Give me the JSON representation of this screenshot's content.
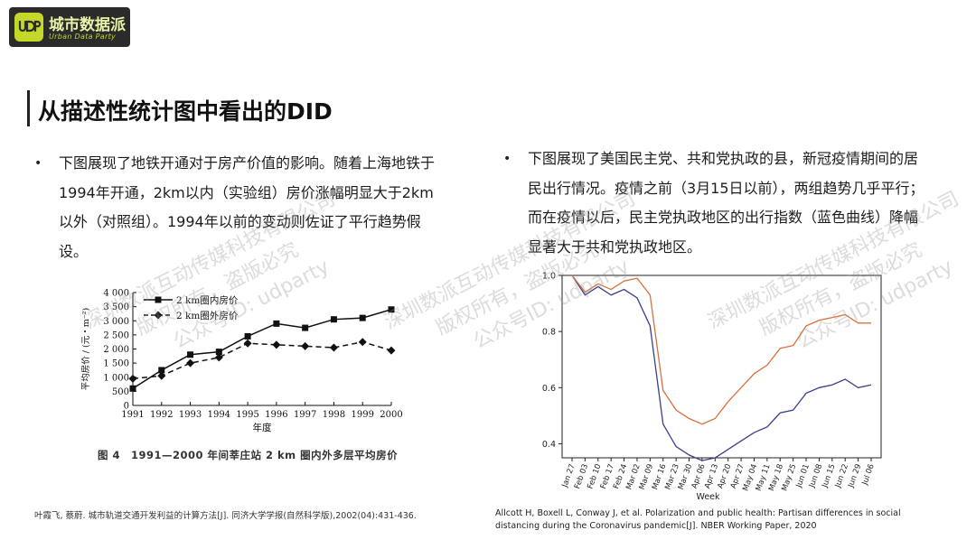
{
  "logo": {
    "title": "城市数据派",
    "subtitle": "Urban Data Party",
    "badge_icon": "udp-badge-icon",
    "badge_color": "#c3d829"
  },
  "title": "从描述性统计图中看出的DID",
  "left": {
    "bullet": "•",
    "text": "下图展现了地铁开通对于房产价值的影响。随着上海地铁于1994年开通，2km以内（实验组）房价涨幅明显大于2km以外（对照组）。1994年以前的变动则佐证了平行趋势假设。",
    "chart_caption": "图 4　1991—2000 年间莘庄站 2 km 圈内外多层平均房价",
    "reference": "叶霞飞, 蔡蔚. 城市轨道交通开发利益的计算方法[J]. 同济大学学报(自然科学版),2002(04):431-436."
  },
  "right": {
    "bullet": "•",
    "text": "下图展现了美国民主党、共和党执政的县，新冠疫情期间的居民出行情况。疫情之前（3月15日以前），两组趋势几乎平行；而在疫情以后，民主党执政地区的出行指数（蓝色曲线）降幅显著大于共和党执政地区。",
    "reference": "Allcott H, Boxell L, Conway J, et al. Polarization and public health: Partisan differences in social distancing during the Coronavirus pandemic[J]. NBER Working Paper, 2020"
  },
  "watermarks": [
    {
      "line1": "深圳数派互动传媒科技有限公司",
      "line2": "版权所有，盗版必究",
      "line3": "公众号ID: udparty"
    },
    {
      "line1": "深圳数派互动传媒科技有限公司",
      "line2": "版权所有，盗版必究",
      "line3": "公众号ID: udparty"
    },
    {
      "line1": "深圳数派互动传媒科技有限公司",
      "line2": "版权所有，盗版必究",
      "line3": "公众号ID: udparty"
    }
  ],
  "chart_data": [
    {
      "type": "line",
      "xlabel": "年度",
      "ylabel": "平均房价 / (元・m⁻²)",
      "x": [
        1991,
        1992,
        1993,
        1994,
        1995,
        1996,
        1997,
        1998,
        1999,
        2000
      ],
      "y_ticks": [
        0,
        500,
        1000,
        1500,
        2000,
        2500,
        3000,
        3500,
        4000
      ],
      "y_tick_labels": [
        "0",
        "500",
        "1 000",
        "1 500",
        "2 000",
        "2 500",
        "3 000",
        "3 500",
        "4 000"
      ],
      "ylim": [
        0,
        4000
      ],
      "legend_position": "top-left",
      "series": [
        {
          "name": "2 km圈内房价",
          "style": "solid",
          "marker": "square",
          "color": "#111111",
          "values": [
            600,
            1250,
            1800,
            1900,
            2450,
            2900,
            2750,
            3050,
            3100,
            3400
          ]
        },
        {
          "name": "2 km圈外房价",
          "style": "dashed",
          "marker": "diamond",
          "color": "#111111",
          "values": [
            950,
            1050,
            1500,
            1700,
            2200,
            2150,
            2100,
            2050,
            2250,
            1950
          ]
        }
      ]
    },
    {
      "type": "line",
      "xlabel": "Week",
      "ylabel": "",
      "ylim": [
        0.35,
        1.0
      ],
      "y_ticks": [
        0.4,
        0.6,
        0.8,
        1.0
      ],
      "y_tick_labels": [
        "0.4",
        "0.6",
        "0.8",
        "1.0"
      ],
      "categories": [
        "Jan 27",
        "Feb 03",
        "Feb 10",
        "Feb 17",
        "Feb 24",
        "Mar 02",
        "Mar 09",
        "Mar 16",
        "Mar 23",
        "Mar 30",
        "Apr 06",
        "Apr 13",
        "Apr 20",
        "Apr 27",
        "May 04",
        "May 11",
        "May 18",
        "May 25",
        "Jun 01",
        "Jun 08",
        "Jun 15",
        "Jun 22",
        "Jun 29",
        "Jul 06"
      ],
      "grid": false,
      "series": [
        {
          "color": "#3a3f8f",
          "values": [
            1.0,
            0.93,
            0.96,
            0.93,
            0.95,
            0.92,
            0.82,
            0.47,
            0.39,
            0.36,
            0.34,
            0.35,
            0.38,
            0.41,
            0.44,
            0.46,
            0.51,
            0.52,
            0.58,
            0.6,
            0.61,
            0.63,
            0.6,
            0.61
          ]
        },
        {
          "color": "#d9703a",
          "values": [
            1.0,
            0.94,
            0.97,
            0.95,
            0.98,
            0.99,
            0.93,
            0.59,
            0.52,
            0.49,
            0.47,
            0.49,
            0.55,
            0.6,
            0.65,
            0.68,
            0.74,
            0.75,
            0.82,
            0.84,
            0.85,
            0.86,
            0.83,
            0.83
          ]
        }
      ]
    }
  ]
}
